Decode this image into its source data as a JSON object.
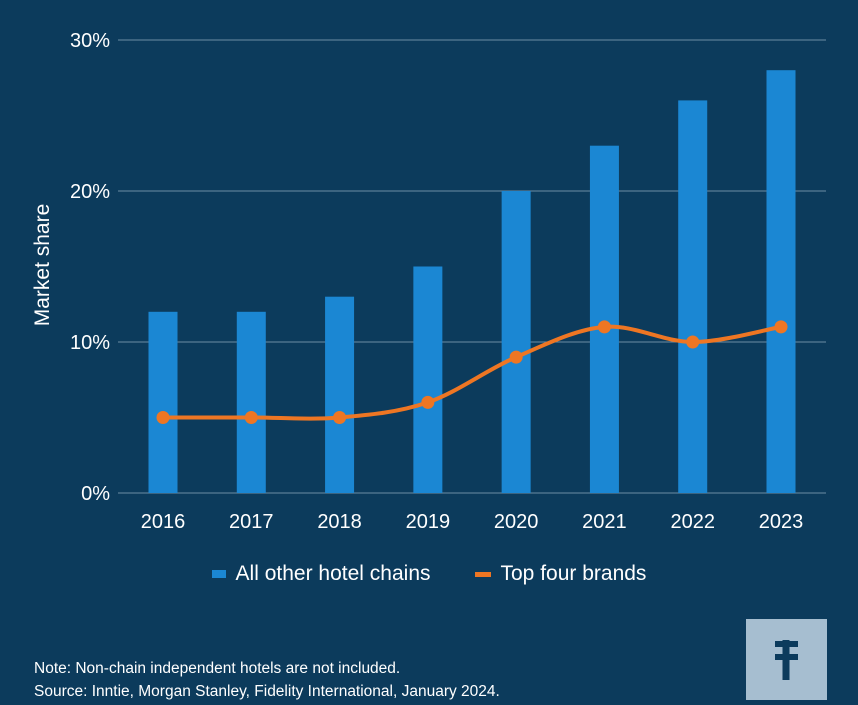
{
  "chart_data": {
    "type": "bar",
    "categories": [
      "2016",
      "2017",
      "2018",
      "2019",
      "2020",
      "2021",
      "2022",
      "2023"
    ],
    "series": [
      {
        "name": "All other hotel chains",
        "kind": "bar",
        "color": "#1b87d3",
        "values": [
          12,
          12,
          13,
          15,
          20,
          23,
          26,
          28
        ]
      },
      {
        "name": "Top four brands",
        "kind": "line",
        "color": "#ee7623",
        "values": [
          5,
          5,
          5,
          6,
          9,
          11,
          10,
          11
        ]
      }
    ],
    "ylabel": "Market share",
    "ylim": [
      0,
      30
    ],
    "yticks": [
      "0%",
      "10%",
      "20%",
      "30%"
    ],
    "grid": true,
    "legend_position": "bottom"
  },
  "legend": {
    "bar_label": "All other hotel chains",
    "line_label": "Top four brands"
  },
  "notes": {
    "note": "Note: Non-chain independent hotels are not included.",
    "source": "Source: Inntie, Morgan Stanley, Fidelity International, January 2024."
  },
  "colors": {
    "background": "#0c3b5c",
    "bar": "#1b87d3",
    "line": "#ee7623",
    "grid": "#6d8ca4",
    "logo_bg": "#a6bed0",
    "logo_fg": "#0c3b5c"
  },
  "logo": {
    "icon": "fidelity-logo-icon"
  }
}
